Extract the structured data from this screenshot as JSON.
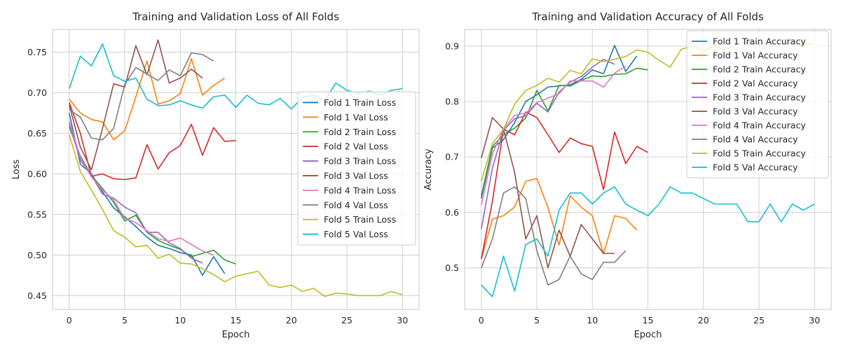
{
  "chart_data": [
    {
      "type": "line",
      "title": "Training and Validation Loss of All Folds",
      "xlabel": "Epoch",
      "ylabel": "Loss",
      "xlim": [
        -1.5,
        31.5
      ],
      "ylim": [
        0.433,
        0.778
      ],
      "xticks": [
        0,
        5,
        10,
        15,
        20,
        25,
        30
      ],
      "yticks": [
        0.45,
        0.5,
        0.55,
        0.6,
        0.65,
        0.7,
        0.75
      ],
      "ytick_labels": [
        "0.45",
        "0.50",
        "0.55",
        "0.60",
        "0.65",
        "0.70",
        "0.75"
      ],
      "grid": true,
      "legend_position": "center-right",
      "series": [
        {
          "name": "Fold 1 Train Loss",
          "color": "#1f77b4",
          "values": [
            0.675,
            0.612,
            0.6,
            0.578,
            0.558,
            0.547,
            0.535,
            0.522,
            0.512,
            0.508,
            0.503,
            0.5,
            0.475,
            0.498,
            0.477
          ]
        },
        {
          "name": "Fold 1 Val Loss",
          "color": "#ff7f0e",
          "values": [
            0.692,
            0.675,
            0.667,
            0.664,
            0.642,
            0.653,
            0.695,
            0.739,
            0.686,
            0.69,
            0.699,
            0.742,
            0.697,
            0.709,
            0.718
          ]
        },
        {
          "name": "Fold 2 Train Loss",
          "color": "#2ca02c",
          "values": [
            0.658,
            0.622,
            0.598,
            0.582,
            0.565,
            0.542,
            0.549,
            0.528,
            0.518,
            0.512,
            0.507,
            0.498,
            0.502,
            0.506,
            0.494,
            0.489
          ]
        },
        {
          "name": "Fold 2 Val Loss",
          "color": "#d62728",
          "values": [
            0.688,
            0.65,
            0.597,
            0.6,
            0.594,
            0.593,
            0.595,
            0.636,
            0.606,
            0.626,
            0.635,
            0.661,
            0.623,
            0.657,
            0.64,
            0.641
          ]
        },
        {
          "name": "Fold 3 Train Loss",
          "color": "#9467bd",
          "values": [
            0.662,
            0.617,
            0.598,
            0.575,
            0.57,
            0.559,
            0.552,
            0.528,
            0.528,
            0.515,
            0.508,
            0.496,
            0.49
          ]
        },
        {
          "name": "Fold 3 Val Loss",
          "color": "#8c564b",
          "values": [
            0.685,
            0.633,
            0.605,
            0.656,
            0.711,
            0.707,
            0.758,
            0.722,
            0.765,
            0.712,
            0.718,
            0.729,
            0.718
          ]
        },
        {
          "name": "Fold 4 Train Loss",
          "color": "#e377c2",
          "values": [
            0.665,
            0.62,
            0.596,
            0.58,
            0.568,
            0.545,
            0.54,
            0.53,
            0.52,
            0.517,
            0.521,
            0.513,
            0.505,
            0.5
          ]
        },
        {
          "name": "Fold 4 Val Loss",
          "color": "#7f7f7f",
          "values": [
            0.679,
            0.67,
            0.644,
            0.642,
            0.656,
            0.71,
            0.731,
            0.723,
            0.715,
            0.728,
            0.721,
            0.749,
            0.747,
            0.739
          ]
        },
        {
          "name": "Fold 5 Train Loss",
          "color": "#bcbd22",
          "values": [
            0.648,
            0.603,
            0.58,
            0.556,
            0.53,
            0.522,
            0.51,
            0.512,
            0.496,
            0.501,
            0.49,
            0.489,
            0.483,
            0.476,
            0.467,
            0.474,
            0.477,
            0.48,
            0.463,
            0.46,
            0.463,
            0.455,
            0.459,
            0.449,
            0.453,
            0.452,
            0.45,
            0.45,
            0.45,
            0.455,
            0.451
          ]
        },
        {
          "name": "Fold 5 Val Loss",
          "color": "#17becf",
          "values": [
            0.705,
            0.745,
            0.733,
            0.76,
            0.721,
            0.714,
            0.718,
            0.692,
            0.684,
            0.685,
            0.69,
            0.685,
            0.681,
            0.695,
            0.697,
            0.682,
            0.697,
            0.687,
            0.685,
            0.693,
            0.68,
            0.694,
            0.697,
            0.69,
            0.712,
            0.703,
            0.699,
            0.702,
            0.697,
            0.703,
            0.705
          ]
        }
      ]
    },
    {
      "type": "line",
      "title": "Training and Validation Accuracy of All Folds",
      "xlabel": "Epoch",
      "ylabel": "Accuracy",
      "xlim": [
        -1.5,
        31.5
      ],
      "ylim": [
        0.425,
        0.93
      ],
      "xticks": [
        0,
        5,
        10,
        15,
        20,
        25,
        30
      ],
      "yticks": [
        0.5,
        0.6,
        0.7,
        0.8,
        0.9
      ],
      "ytick_labels": [
        "0.5",
        "0.6",
        "0.7",
        "0.8",
        "0.9"
      ],
      "grid": true,
      "legend_position": "top-right",
      "series": [
        {
          "name": "Fold 1 Train Accuracy",
          "color": "#1f77b4",
          "values": [
            0.625,
            0.716,
            0.731,
            0.762,
            0.8,
            0.812,
            0.826,
            0.828,
            0.83,
            0.84,
            0.857,
            0.85,
            0.901,
            0.854,
            0.882
          ]
        },
        {
          "name": "Fold 1 Val Accuracy",
          "color": "#ff7f0e",
          "values": [
            0.516,
            0.588,
            0.594,
            0.61,
            0.656,
            0.661,
            0.609,
            0.541,
            0.63,
            0.609,
            0.594,
            0.525,
            0.594,
            0.589,
            0.568
          ]
        },
        {
          "name": "Fold 2 Train Accuracy",
          "color": "#2ca02c",
          "values": [
            0.63,
            0.719,
            0.74,
            0.752,
            0.77,
            0.82,
            0.783,
            0.829,
            0.828,
            0.838,
            0.846,
            0.845,
            0.849,
            0.85,
            0.86,
            0.857
          ]
        },
        {
          "name": "Fold 2 Val Accuracy",
          "color": "#d62728",
          "values": [
            0.516,
            0.62,
            0.75,
            0.74,
            0.781,
            0.771,
            0.74,
            0.708,
            0.734,
            0.724,
            0.719,
            0.641,
            0.745,
            0.688,
            0.719,
            0.708
          ]
        },
        {
          "name": "Fold 3 Train Accuracy",
          "color": "#9467bd",
          "values": [
            0.57,
            0.68,
            0.748,
            0.769,
            0.774,
            0.797,
            0.781,
            0.817,
            0.835,
            0.845,
            0.862,
            0.876,
            0.867
          ]
        },
        {
          "name": "Fold 3 Val Accuracy",
          "color": "#8c564b",
          "values": [
            0.698,
            0.771,
            0.75,
            0.672,
            0.552,
            0.594,
            0.5,
            0.568,
            0.521,
            0.578,
            0.552,
            0.526,
            0.526
          ]
        },
        {
          "name": "Fold 4 Train Accuracy",
          "color": "#e377c2",
          "values": [
            0.613,
            0.705,
            0.751,
            0.775,
            0.779,
            0.798,
            0.806,
            0.814,
            0.837,
            0.837,
            0.837,
            0.826,
            0.851,
            0.864
          ]
        },
        {
          "name": "Fold 4 Val Accuracy",
          "color": "#7f7f7f",
          "values": [
            0.5,
            0.552,
            0.635,
            0.646,
            0.625,
            0.531,
            0.469,
            0.479,
            0.521,
            0.489,
            0.479,
            0.51,
            0.51,
            0.531
          ]
        },
        {
          "name": "Fold 5 Train Accuracy",
          "color": "#bcbd22",
          "values": [
            0.656,
            0.724,
            0.75,
            0.795,
            0.82,
            0.829,
            0.842,
            0.835,
            0.856,
            0.85,
            0.877,
            0.872,
            0.876,
            0.881,
            0.893,
            0.889,
            0.874,
            0.862,
            0.894,
            0.9,
            0.892,
            0.9,
            0.893,
            0.904,
            0.906,
            0.903,
            0.908,
            0.904,
            0.907,
            0.903,
            0.905
          ]
        },
        {
          "name": "Fold 5 Val Accuracy",
          "color": "#17becf",
          "values": [
            0.469,
            0.448,
            0.521,
            0.458,
            0.542,
            0.552,
            0.521,
            0.604,
            0.635,
            0.635,
            0.615,
            0.635,
            0.646,
            0.615,
            0.604,
            0.594,
            0.615,
            0.646,
            0.635,
            0.635,
            0.625,
            0.615,
            0.615,
            0.615,
            0.583,
            0.583,
            0.615,
            0.583,
            0.615,
            0.604,
            0.615
          ]
        }
      ]
    }
  ]
}
